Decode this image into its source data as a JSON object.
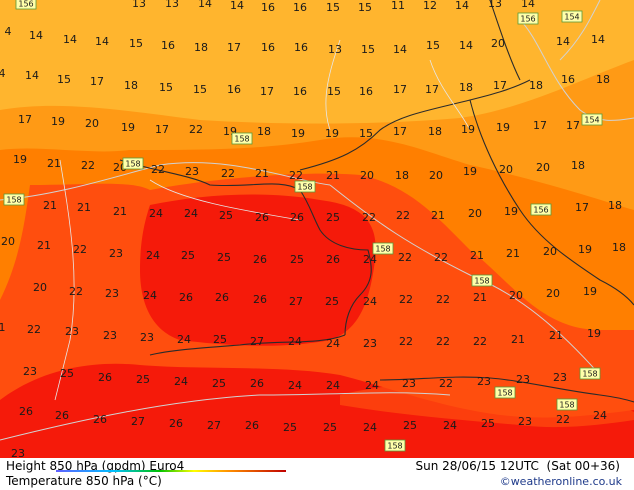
{
  "footer": {
    "left_line1": "Height 850 hPa (gpdm) Euro4",
    "left_line2": "Temperature 850 hPa (°C)",
    "right_line1": "Sun 28/06/15 12UTC  (Sat 00+36)",
    "right_line2": "©weatheronline.co.uk"
  },
  "colors": {
    "t14": "#ffb52e",
    "t18": "#ff9a15",
    "t20": "#ff7f00",
    "t23": "#ff4e0e",
    "t26": "#f51a0a",
    "lines": "#d2d2d2",
    "borders": "#2b2b2b"
  },
  "temperatures": [
    {
      "v": "156"
    },
    {
      "v": "13"
    },
    {
      "v": "13"
    },
    {
      "v": "14"
    },
    {
      "v": "14"
    },
    {
      "v": "16"
    },
    {
      "v": "16"
    },
    {
      "v": "15"
    },
    {
      "v": "15"
    },
    {
      "v": "11"
    },
    {
      "v": "12"
    },
    {
      "v": "14"
    },
    {
      "v": "13"
    },
    {
      "v": "14"
    },
    {
      "v": "4"
    },
    {
      "v": "14"
    },
    {
      "v": "14"
    },
    {
      "v": "14"
    },
    {
      "v": "15"
    },
    {
      "v": "16"
    },
    {
      "v": "18"
    },
    {
      "v": "17"
    },
    {
      "v": "16"
    },
    {
      "v": "16"
    },
    {
      "v": "13"
    },
    {
      "v": "15"
    },
    {
      "v": "14"
    },
    {
      "v": "15"
    },
    {
      "v": "14"
    },
    {
      "v": "20"
    },
    {
      "v": "14"
    },
    {
      "v": "14"
    },
    {
      "v": "4"
    },
    {
      "v": "14"
    },
    {
      "v": "15"
    },
    {
      "v": "17"
    },
    {
      "v": "18"
    },
    {
      "v": "15"
    },
    {
      "v": "15"
    },
    {
      "v": "16"
    },
    {
      "v": "17"
    },
    {
      "v": "16"
    },
    {
      "v": "15"
    },
    {
      "v": "16"
    },
    {
      "v": "17"
    },
    {
      "v": "17"
    },
    {
      "v": "18"
    },
    {
      "v": "17"
    },
    {
      "v": "18"
    },
    {
      "v": "16"
    },
    {
      "v": "18"
    },
    {
      "v": "17"
    },
    {
      "v": "19"
    },
    {
      "v": "20"
    },
    {
      "v": "19"
    },
    {
      "v": "17"
    },
    {
      "v": "22"
    },
    {
      "v": "19"
    },
    {
      "v": "18"
    },
    {
      "v": "19"
    },
    {
      "v": "19"
    },
    {
      "v": "15"
    },
    {
      "v": "17"
    },
    {
      "v": "18"
    },
    {
      "v": "19"
    },
    {
      "v": "19"
    },
    {
      "v": "17"
    },
    {
      "v": "17"
    },
    {
      "v": "19"
    },
    {
      "v": "21"
    },
    {
      "v": "22"
    },
    {
      "v": "20"
    },
    {
      "v": "22"
    },
    {
      "v": "23"
    },
    {
      "v": "22"
    },
    {
      "v": "21"
    },
    {
      "v": "22"
    },
    {
      "v": "21"
    },
    {
      "v": "20"
    },
    {
      "v": "18"
    },
    {
      "v": "20"
    },
    {
      "v": "19"
    },
    {
      "v": "20"
    },
    {
      "v": "20"
    },
    {
      "v": "18"
    },
    {
      "v": "21"
    },
    {
      "v": "21"
    },
    {
      "v": "21"
    },
    {
      "v": "24"
    },
    {
      "v": "24"
    },
    {
      "v": "25"
    },
    {
      "v": "26"
    },
    {
      "v": "26"
    },
    {
      "v": "25"
    },
    {
      "v": "22"
    },
    {
      "v": "22"
    },
    {
      "v": "21"
    },
    {
      "v": "20"
    },
    {
      "v": "19"
    },
    {
      "v": "17"
    },
    {
      "v": "18"
    },
    {
      "v": "20"
    },
    {
      "v": "21"
    },
    {
      "v": "22"
    },
    {
      "v": "23"
    },
    {
      "v": "24"
    },
    {
      "v": "25"
    },
    {
      "v": "25"
    },
    {
      "v": "26"
    },
    {
      "v": "25"
    },
    {
      "v": "26"
    },
    {
      "v": "24"
    },
    {
      "v": "22"
    },
    {
      "v": "22"
    },
    {
      "v": "21"
    },
    {
      "v": "21"
    },
    {
      "v": "20"
    },
    {
      "v": "19"
    },
    {
      "v": "18"
    },
    {
      "v": "20"
    },
    {
      "v": "22"
    },
    {
      "v": "23"
    },
    {
      "v": "24"
    },
    {
      "v": "26"
    },
    {
      "v": "26"
    },
    {
      "v": "26"
    },
    {
      "v": "27"
    },
    {
      "v": "25"
    },
    {
      "v": "24"
    },
    {
      "v": "22"
    },
    {
      "v": "22"
    },
    {
      "v": "21"
    },
    {
      "v": "20"
    },
    {
      "v": "20"
    },
    {
      "v": "19"
    },
    {
      "v": "1"
    },
    {
      "v": "22"
    },
    {
      "v": "23"
    },
    {
      "v": "23"
    },
    {
      "v": "23"
    },
    {
      "v": "24"
    },
    {
      "v": "25"
    },
    {
      "v": "27"
    },
    {
      "v": "24"
    },
    {
      "v": "24"
    },
    {
      "v": "23"
    },
    {
      "v": "22"
    },
    {
      "v": "22"
    },
    {
      "v": "22"
    },
    {
      "v": "21"
    },
    {
      "v": "21"
    },
    {
      "v": "19"
    },
    {
      "v": "23"
    },
    {
      "v": "25"
    },
    {
      "v": "26"
    },
    {
      "v": "25"
    },
    {
      "v": "24"
    },
    {
      "v": "25"
    },
    {
      "v": "26"
    },
    {
      "v": "24"
    },
    {
      "v": "24"
    },
    {
      "v": "24"
    },
    {
      "v": "23"
    },
    {
      "v": "22"
    },
    {
      "v": "23"
    },
    {
      "v": "23"
    },
    {
      "v": "23"
    },
    {
      "v": "26"
    },
    {
      "v": "26"
    },
    {
      "v": "26"
    },
    {
      "v": "27"
    },
    {
      "v": "26"
    },
    {
      "v": "27"
    },
    {
      "v": "26"
    },
    {
      "v": "25"
    },
    {
      "v": "25"
    },
    {
      "v": "24"
    },
    {
      "v": "25"
    },
    {
      "v": "24"
    },
    {
      "v": "25"
    },
    {
      "v": "23"
    },
    {
      "v": "22"
    },
    {
      "v": "24"
    },
    {
      "v": "23"
    }
  ],
  "height_labels": [
    {
      "v": "156"
    },
    {
      "v": "154"
    },
    {
      "v": "156"
    },
    {
      "v": "154"
    },
    {
      "v": "158"
    },
    {
      "v": "158"
    },
    {
      "v": "158"
    },
    {
      "v": "158"
    },
    {
      "v": "156"
    },
    {
      "v": "158"
    },
    {
      "v": "158"
    },
    {
      "v": "158"
    },
    {
      "v": "158"
    },
    {
      "v": "158"
    },
    {
      "v": "158"
    }
  ]
}
